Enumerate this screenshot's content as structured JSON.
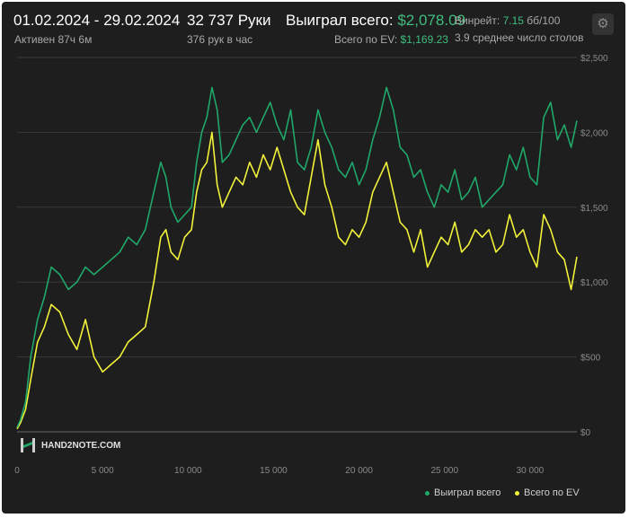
{
  "header": {
    "date_range": "01.02.2024 - 29.02.2024",
    "active": "Активен 87ч 6м",
    "hands": "32 737 Руки",
    "per_hour": "376 рук в час",
    "won_label": "Выиграл всего:",
    "won_value": "$2,078.09",
    "ev_label": "Всего по EV:",
    "ev_value": "$1,169.23",
    "winrate_label": "Винрейт:",
    "winrate_value": "7.15",
    "winrate_unit": "бб/100",
    "tables": "3.9 среднее число столов"
  },
  "icons": {
    "settings": "gear-icon"
  },
  "logo": {
    "text": "HAND2NOTE.COM"
  },
  "colors": {
    "won": "#20a86a",
    "ev": "#f2f23a",
    "grid": "#3a3a3a",
    "background": "#1e1e1e"
  },
  "legend": {
    "won": "Выиграл всего",
    "ev": "Всего по EV"
  },
  "chart_data": {
    "type": "line",
    "x_ticks": [
      {
        "value": 0,
        "label": "0"
      },
      {
        "value": 5000,
        "label": "5 000"
      },
      {
        "value": 10000,
        "label": "10 000"
      },
      {
        "value": 15000,
        "label": "15 000"
      },
      {
        "value": 20000,
        "label": "20 000"
      },
      {
        "value": 25000,
        "label": "25 000"
      },
      {
        "value": 30000,
        "label": "30 000"
      }
    ],
    "y_ticks": [
      {
        "value": 0,
        "label": "$0"
      },
      {
        "value": 500,
        "label": "$500"
      },
      {
        "value": 1000,
        "label": "$1,000"
      },
      {
        "value": 1500,
        "label": "$1,500"
      },
      {
        "value": 2000,
        "label": "$2,000"
      },
      {
        "value": 2500,
        "label": "$2,500"
      }
    ],
    "xlim": [
      0,
      32737
    ],
    "ylim": [
      0,
      2500
    ],
    "grid": true,
    "legend_position": "bottom-right",
    "series": [
      {
        "name": "Выиграл всего",
        "color": "#20a86a",
        "x": [
          0,
          200,
          500,
          800,
          1200,
          1600,
          2000,
          2500,
          3000,
          3500,
          4000,
          4500,
          5000,
          5500,
          6000,
          6500,
          7000,
          7500,
          8000,
          8400,
          8700,
          9000,
          9400,
          9800,
          10200,
          10500,
          10800,
          11100,
          11400,
          11700,
          12000,
          12400,
          12800,
          13200,
          13600,
          14000,
          14400,
          14800,
          15200,
          15600,
          16000,
          16400,
          16800,
          17200,
          17600,
          18000,
          18400,
          18800,
          19200,
          19600,
          20000,
          20400,
          20800,
          21200,
          21600,
          22000,
          22400,
          22800,
          23200,
          23600,
          24000,
          24400,
          24800,
          25200,
          25600,
          26000,
          26400,
          26800,
          27200,
          27600,
          28000,
          28400,
          28800,
          29200,
          29600,
          30000,
          30400,
          30800,
          31200,
          31600,
          32000,
          32400,
          32737
        ],
        "y": [
          30,
          80,
          200,
          500,
          750,
          900,
          1100,
          1050,
          950,
          1000,
          1100,
          1050,
          1100,
          1150,
          1200,
          1300,
          1250,
          1350,
          1600,
          1800,
          1700,
          1500,
          1400,
          1450,
          1500,
          1800,
          2000,
          2100,
          2300,
          2150,
          1800,
          1850,
          1950,
          2050,
          2100,
          2000,
          2100,
          2200,
          2050,
          1950,
          2150,
          1800,
          1750,
          1900,
          2150,
          2000,
          1900,
          1750,
          1700,
          1800,
          1650,
          1750,
          1950,
          2100,
          2300,
          2150,
          1900,
          1850,
          1700,
          1750,
          1600,
          1500,
          1650,
          1600,
          1750,
          1550,
          1600,
          1700,
          1500,
          1550,
          1600,
          1650,
          1850,
          1750,
          1900,
          1700,
          1650,
          2100,
          2200,
          1950,
          2050,
          1900,
          2078
        ]
      },
      {
        "name": "Всего по EV",
        "color": "#f2f23a",
        "x": [
          0,
          200,
          500,
          800,
          1200,
          1600,
          2000,
          2500,
          3000,
          3500,
          4000,
          4500,
          5000,
          5500,
          6000,
          6500,
          7000,
          7500,
          8000,
          8400,
          8700,
          9000,
          9400,
          9800,
          10200,
          10500,
          10800,
          11100,
          11400,
          11700,
          12000,
          12400,
          12800,
          13200,
          13600,
          14000,
          14400,
          14800,
          15200,
          15600,
          16000,
          16400,
          16800,
          17200,
          17600,
          18000,
          18400,
          18800,
          19200,
          19600,
          20000,
          20400,
          20800,
          21200,
          21600,
          22000,
          22400,
          22800,
          23200,
          23600,
          24000,
          24400,
          24800,
          25200,
          25600,
          26000,
          26400,
          26800,
          27200,
          27600,
          28000,
          28400,
          28800,
          29200,
          29600,
          30000,
          30400,
          30800,
          31200,
          31600,
          32000,
          32400,
          32737
        ],
        "y": [
          20,
          60,
          150,
          350,
          600,
          700,
          850,
          800,
          650,
          550,
          750,
          500,
          400,
          450,
          500,
          600,
          650,
          700,
          1000,
          1300,
          1350,
          1200,
          1150,
          1300,
          1350,
          1600,
          1750,
          1800,
          2000,
          1650,
          1500,
          1600,
          1700,
          1650,
          1800,
          1700,
          1850,
          1750,
          1900,
          1750,
          1600,
          1500,
          1450,
          1700,
          1950,
          1650,
          1500,
          1300,
          1250,
          1350,
          1300,
          1400,
          1600,
          1700,
          1800,
          1600,
          1400,
          1350,
          1200,
          1350,
          1100,
          1200,
          1300,
          1250,
          1400,
          1200,
          1250,
          1350,
          1300,
          1350,
          1200,
          1250,
          1450,
          1300,
          1350,
          1200,
          1100,
          1450,
          1350,
          1200,
          1150,
          950,
          1169
        ]
      }
    ]
  }
}
